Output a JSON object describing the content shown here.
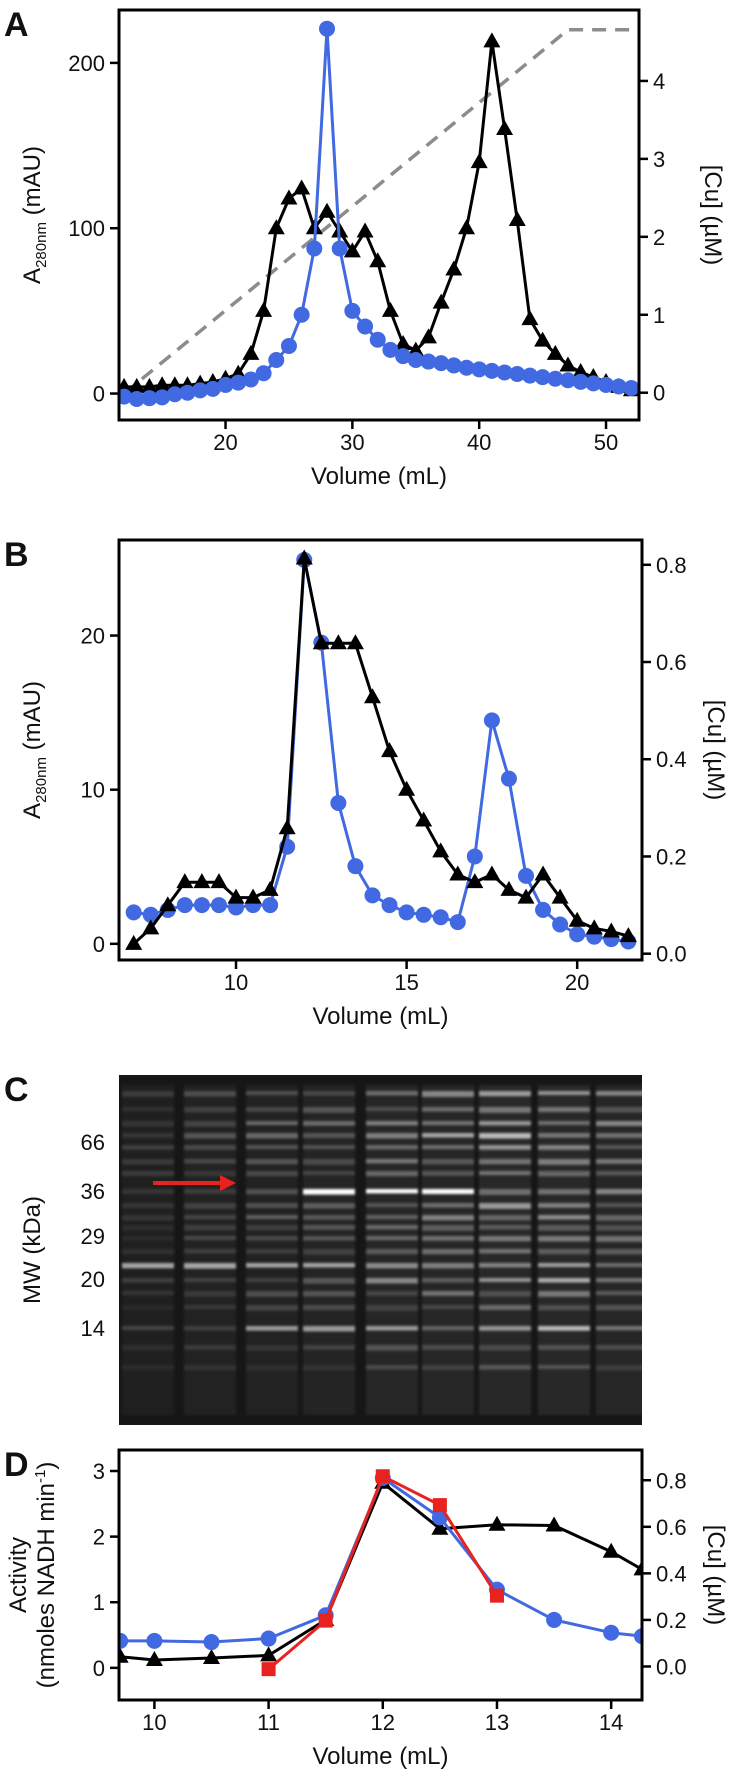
{
  "chart_data": [
    {
      "type": "line",
      "panel": "A",
      "xlabel": "Volume (mL)",
      "ylabel": "A",
      "ylabel_sub": "280nm",
      "ylabel_after": " (mAU)",
      "y2label": "[Cu] (µM)",
      "xlim": [
        11.6,
        52.6
      ],
      "xticks": [
        20,
        30,
        40,
        50
      ],
      "ylim": [
        -16,
        232
      ],
      "yticks": [
        0,
        100,
        200
      ],
      "y2lim": [
        -0.35,
        4.91
      ],
      "y2ticks": [
        0,
        1,
        2,
        3,
        4
      ],
      "x": [
        12,
        13,
        14,
        15,
        16,
        17,
        18,
        19,
        20,
        21,
        22,
        23,
        24,
        25,
        26,
        27,
        28,
        29,
        30,
        31,
        32,
        33,
        34,
        35,
        36,
        37,
        38,
        39,
        40,
        41,
        42,
        43,
        44,
        45,
        46,
        47,
        48,
        49,
        50,
        51,
        52
      ],
      "series": [
        {
          "color": "#8c8c8c",
          "marker": "none",
          "dash": true,
          "x": [
            12,
            47,
            52.6
          ],
          "values": [
            0,
            220,
            220
          ]
        },
        {
          "color": "#000000",
          "marker": "triangle",
          "values": [
            4,
            4,
            4,
            5,
            5,
            5,
            6,
            7,
            9,
            12,
            24,
            50,
            100,
            118,
            124,
            100,
            110,
            98,
            86,
            98,
            80,
            50,
            30,
            26,
            34,
            55,
            75,
            100,
            140,
            213,
            160,
            105,
            45,
            32,
            24,
            17,
            13,
            10,
            7,
            4,
            2
          ]
        },
        {
          "color": "#4169e1",
          "marker": "circle",
          "axis": "y2",
          "values": [
            -0.05,
            -0.08,
            -0.07,
            -0.06,
            -0.02,
            0,
            0.03,
            0.05,
            0.1,
            0.13,
            0.17,
            0.25,
            0.42,
            0.6,
            1.0,
            1.85,
            4.67,
            1.85,
            1.05,
            0.85,
            0.68,
            0.55,
            0.47,
            0.42,
            0.4,
            0.38,
            0.35,
            0.32,
            0.3,
            0.28,
            0.26,
            0.24,
            0.22,
            0.2,
            0.18,
            0.16,
            0.14,
            0.12,
            0.1,
            0.08,
            0.06
          ]
        }
      ]
    },
    {
      "type": "line",
      "panel": "B",
      "xlabel": "Volume (mL)",
      "ylabel": "A",
      "ylabel_sub": "280nm",
      "ylabel_after": " (mAU)",
      "y2label": "[Cu] (µM)",
      "xlim": [
        6.57,
        21.9
      ],
      "xticks": [
        10,
        15,
        20
      ],
      "ylim": [
        -1.05,
        26.2
      ],
      "yticks": [
        0,
        10,
        20
      ],
      "y2lim": [
        -0.013,
        0.851
      ],
      "y2ticks": [
        {
          "value": 0,
          "label": "0.0"
        },
        0.2,
        0.4,
        0.6,
        0.8
      ],
      "x": [
        7,
        7.5,
        8,
        8.5,
        9,
        9.5,
        10,
        10.5,
        11,
        11.5,
        12,
        12.5,
        13,
        13.5,
        14,
        14.5,
        15,
        15.5,
        16,
        16.5,
        17,
        17.5,
        18,
        18.5,
        19,
        19.5,
        20,
        20.5,
        21,
        21.5
      ],
      "series": [
        {
          "color": "#4169e1",
          "marker": "circle",
          "axis": "y2",
          "values": [
            0.085,
            0.08,
            0.09,
            0.1,
            0.1,
            0.1,
            0.095,
            0.1,
            0.1,
            0.22,
            0.81,
            0.64,
            0.31,
            0.18,
            0.12,
            0.1,
            0.085,
            0.08,
            0.075,
            0.065,
            0.2,
            0.48,
            0.36,
            0.16,
            0.09,
            0.06,
            0.04,
            0.035,
            0.03,
            0.025
          ]
        },
        {
          "color": "#000000",
          "marker": "triangle",
          "values": [
            0,
            1,
            2.5,
            4,
            4,
            4,
            3,
            3,
            3.5,
            7.5,
            25,
            19.5,
            19.5,
            19.5,
            16,
            12.5,
            10,
            8,
            6,
            4.5,
            4,
            4.5,
            3.5,
            3,
            4.5,
            3,
            1.5,
            1,
            0.8,
            0.5
          ]
        }
      ]
    },
    {
      "type": "gel",
      "panel": "C",
      "ylabel": "MW (kDa)",
      "labels": [
        "66",
        "36",
        "29",
        "20",
        "14"
      ]
    },
    {
      "type": "line",
      "panel": "D",
      "xlabel": "Volume (mL)",
      "ylabel": "Activity",
      "ylabel_line2": "(nmoles NADH min",
      "ylabel_sup": "-1",
      "ylabel_end": ")",
      "y2label": "[Cu] (µM)",
      "xlim": [
        9.69,
        14.27
      ],
      "xticks": [
        10,
        11,
        12,
        13,
        14
      ],
      "ylim": [
        -0.49,
        3.32
      ],
      "yticks": [
        0,
        1,
        2,
        3
      ],
      "y2lim": [
        -0.144,
        0.93
      ],
      "y2ticks": [
        {
          "value": 0,
          "label": "0.0"
        },
        0.2,
        0.4,
        0.6,
        0.8
      ],
      "x": [
        9.7,
        10,
        10.5,
        11,
        11.5,
        12,
        12.5,
        13,
        13.5,
        14,
        14.27
      ],
      "series": [
        {
          "color": "#000000",
          "marker": "triangle",
          "values": [
            0.17,
            0.12,
            0.15,
            0.19,
            0.73,
            2.82,
            2.12,
            2.18,
            2.17,
            1.77,
            1.5
          ]
        },
        {
          "color": "#4169e1",
          "marker": "circle",
          "axis": "y2",
          "values": [
            0.11,
            0.11,
            0.105,
            0.12,
            0.22,
            0.81,
            0.64,
            0.33,
            0.2,
            0.145,
            0.13
          ]
        },
        {
          "color": "#e8231f",
          "marker": "square",
          "x": [
            11,
            11.5,
            12,
            12.5,
            13
          ],
          "values": [
            -0.02,
            0.72,
            2.92,
            2.48,
            1.1
          ]
        }
      ]
    }
  ]
}
